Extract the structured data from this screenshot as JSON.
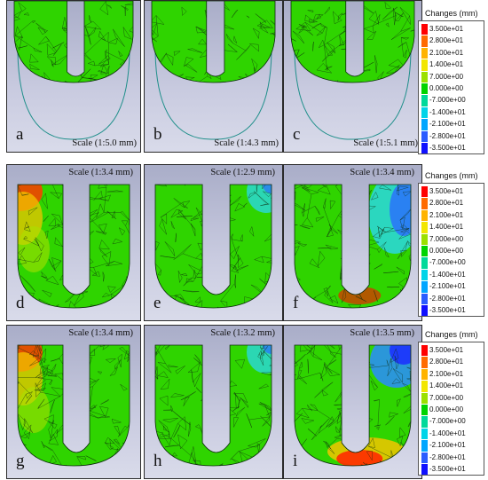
{
  "figure": {
    "rows": [
      {
        "panels": [
          {
            "label": "a",
            "scale": "Scale (1:5.0 mm)",
            "variant": "uniform"
          },
          {
            "label": "b",
            "scale": "Scale (1:4.3 mm)",
            "variant": "uniform"
          },
          {
            "label": "c",
            "scale": "Scale (1:5.1 mm)",
            "variant": "uniform"
          }
        ],
        "legend": {
          "title": "Changes (mm)",
          "values": [
            "3.500e+01",
            "2.800e+01",
            "2.100e+01",
            "1.400e+01",
            "7.000e+00",
            "0.000e+00",
            "-7.000e+00",
            "-1.400e+01",
            "-2.100e+01",
            "-2.800e+01",
            "-3.500e+01"
          ]
        }
      },
      {
        "panels": [
          {
            "label": "d",
            "scale": "Scale (1:3.4 mm)",
            "variant": "hot-left"
          },
          {
            "label": "e",
            "scale": "Scale (1:2.9 mm)",
            "variant": "cool-right"
          },
          {
            "label": "f",
            "scale": "Scale (1:3.4 mm)",
            "variant": "cool-right-big"
          }
        ],
        "legend": {
          "title": "Changes (mm)",
          "values": [
            "3.500e+01",
            "2.800e+01",
            "2.100e+01",
            "1.400e+01",
            "7.000e+00",
            "0.000e+00",
            "-7.000e+00",
            "-1.400e+01",
            "-2.100e+01",
            "-2.800e+01",
            "-3.500e+01"
          ]
        }
      },
      {
        "panels": [
          {
            "label": "g",
            "scale": "Scale (1:3.4 mm)",
            "variant": "hot-left"
          },
          {
            "label": "h",
            "scale": "Scale (1:3.2 mm)",
            "variant": "cool-right"
          },
          {
            "label": "i",
            "scale": "Scale (1:3.5 mm)",
            "variant": "hot-bottom"
          }
        ],
        "legend": {
          "title": "Changes (mm)",
          "values": [
            "3.500e+01",
            "2.800e+01",
            "2.100e+01",
            "1.400e+01",
            "7.000e+00",
            "0.000e+00",
            "-7.000e+00",
            "-1.400e+01",
            "-2.100e+01",
            "-2.800e+01",
            "-3.500e+01"
          ]
        }
      }
    ],
    "colormap": [
      "#ff0000",
      "#ff6a00",
      "#ffb300",
      "#f2e600",
      "#9be000",
      "#00d400",
      "#00d99a",
      "#00d4e8",
      "#00a6ff",
      "#2a5cff",
      "#1010ff"
    ]
  }
}
